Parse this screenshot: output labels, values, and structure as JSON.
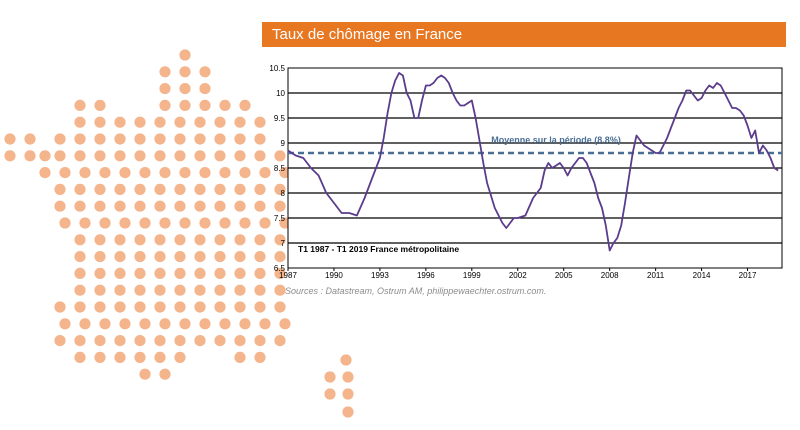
{
  "theme": {
    "accent": "#e87722",
    "dot": "#f4b48c",
    "line": "#5b3c8c",
    "mean": "#4a6f96"
  },
  "banner": {
    "title": "Taux de chômage en France"
  },
  "source": "Sources : Datastream, Ostrum AM, philippewaechter.ostrum.com.",
  "chart_data": {
    "type": "line",
    "title": "Taux de chômage en France",
    "subtitle": "T1 1987 - T1 2019 France métropolitaine",
    "xlabel": "",
    "ylabel": "",
    "xlim": [
      1987,
      2019.25
    ],
    "ylim": [
      6.5,
      10.5
    ],
    "x_ticks": [
      "1987",
      "1990",
      "1993",
      "1996",
      "1999",
      "2002",
      "2005",
      "2008",
      "2011",
      "2014",
      "2017"
    ],
    "y_ticks": [
      "6.5",
      "7",
      "7.5",
      "8",
      "8.5",
      "9",
      "9.5",
      "10",
      "10.5"
    ],
    "grid": true,
    "mean": {
      "label": "Moyenne sur la période (8.8%)",
      "value": 8.8
    },
    "series": [
      {
        "x": [
          1987.0,
          1987.5,
          1988.0,
          1988.5,
          1989.0,
          1989.5,
          1990.0,
          1990.5,
          1991.0,
          1991.5,
          1992.0,
          1992.5,
          1993.0,
          1993.25,
          1993.5,
          1993.75,
          1994.0,
          1994.25,
          1994.5,
          1994.75,
          1995.0,
          1995.25,
          1995.5,
          1995.75,
          1996.0,
          1996.25,
          1996.5,
          1996.75,
          1997.0,
          1997.25,
          1997.5,
          1997.75,
          1998.0,
          1998.25,
          1998.5,
          1998.75,
          1999.0,
          1999.25,
          1999.5,
          1999.75,
          2000.0,
          2000.5,
          2001.0,
          2001.25,
          2001.5,
          2001.75,
          2002.0,
          2002.5,
          2003.0,
          2003.5,
          2003.75,
          2004.0,
          2004.25,
          2004.5,
          2004.75,
          2005.0,
          2005.25,
          2005.5,
          2005.75,
          2006.0,
          2006.25,
          2006.5,
          2006.75,
          2007.0,
          2007.25,
          2007.5,
          2007.75,
          2008.0,
          2008.25,
          2008.5,
          2008.75,
          2009.0,
          2009.25,
          2009.5,
          2009.75,
          2010.0,
          2010.25,
          2010.5,
          2010.75,
          2011.0,
          2011.25,
          2011.5,
          2011.75,
          2012.0,
          2012.25,
          2012.5,
          2012.75,
          2013.0,
          2013.25,
          2013.5,
          2013.75,
          2014.0,
          2014.25,
          2014.5,
          2014.75,
          2015.0,
          2015.25,
          2015.5,
          2015.75,
          2016.0,
          2016.25,
          2016.5,
          2016.75,
          2017.0,
          2017.25,
          2017.5,
          2017.75,
          2018.0,
          2018.25,
          2018.5,
          2018.75,
          2019.0
        ],
        "y": [
          8.85,
          8.75,
          8.7,
          8.5,
          8.35,
          8.0,
          7.8,
          7.6,
          7.6,
          7.55,
          7.9,
          8.3,
          8.7,
          9.1,
          9.6,
          10.0,
          10.25,
          10.4,
          10.35,
          10.0,
          9.85,
          9.5,
          9.5,
          9.85,
          10.15,
          10.15,
          10.2,
          10.3,
          10.35,
          10.3,
          10.2,
          10.0,
          9.85,
          9.75,
          9.75,
          9.8,
          9.85,
          9.5,
          9.05,
          8.6,
          8.2,
          7.7,
          7.4,
          7.3,
          7.4,
          7.5,
          7.5,
          7.55,
          7.9,
          8.1,
          8.45,
          8.6,
          8.5,
          8.55,
          8.6,
          8.5,
          8.35,
          8.5,
          8.6,
          8.7,
          8.7,
          8.6,
          8.4,
          8.2,
          7.9,
          7.7,
          7.35,
          6.85,
          7.0,
          7.1,
          7.35,
          7.8,
          8.3,
          8.8,
          9.15,
          9.05,
          8.95,
          8.9,
          8.85,
          8.8,
          8.8,
          8.95,
          9.1,
          9.3,
          9.5,
          9.7,
          9.85,
          10.05,
          10.05,
          9.95,
          9.85,
          9.9,
          10.05,
          10.15,
          10.1,
          10.2,
          10.15,
          10.0,
          9.85,
          9.7,
          9.7,
          9.65,
          9.55,
          9.35,
          9.1,
          9.25,
          8.8,
          8.95,
          8.85,
          8.7,
          8.5,
          8.45
        ]
      }
    ]
  }
}
